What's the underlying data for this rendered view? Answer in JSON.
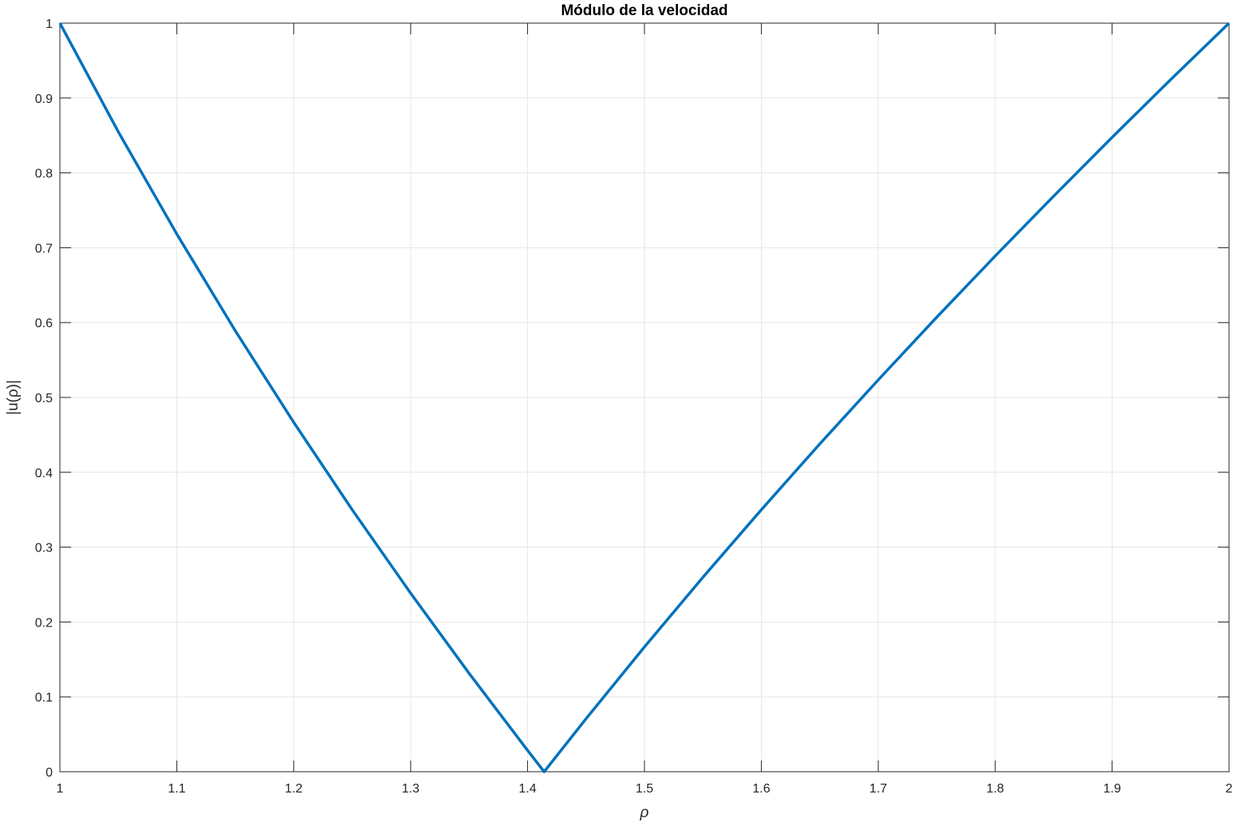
{
  "chart_data": {
    "type": "line",
    "title": "Módulo de la velocidad",
    "xlabel": "ρ",
    "ylabel": "|u(ρ)|",
    "xlim": [
      1,
      2
    ],
    "ylim": [
      0,
      1
    ],
    "grid": true,
    "xticks": [
      "1",
      "1.1",
      "1.2",
      "1.3",
      "1.4",
      "1.5",
      "1.6",
      "1.7",
      "1.8",
      "1.9",
      "2"
    ],
    "yticks": [
      "0",
      "0.1",
      "0.2",
      "0.3",
      "0.4",
      "0.5",
      "0.6",
      "0.7",
      "0.8",
      "0.9",
      "1"
    ],
    "series": [
      {
        "color": "#0072BD",
        "x": [
          1.0,
          1.05,
          1.1,
          1.15,
          1.2,
          1.25,
          1.3,
          1.35,
          1.4,
          1.4142,
          1.45,
          1.5,
          1.55,
          1.6,
          1.65,
          1.7,
          1.75,
          1.8,
          1.85,
          1.9,
          1.95,
          2.0
        ],
        "y": [
          1.0,
          0.8548,
          0.7182,
          0.5891,
          0.4667,
          0.35,
          0.2385,
          0.1315,
          0.0286,
          0.0,
          0.0707,
          0.1667,
          0.2597,
          0.35,
          0.4379,
          0.5235,
          0.6071,
          0.6889,
          0.7689,
          0.8474,
          0.9244,
          1.0
        ]
      }
    ]
  }
}
